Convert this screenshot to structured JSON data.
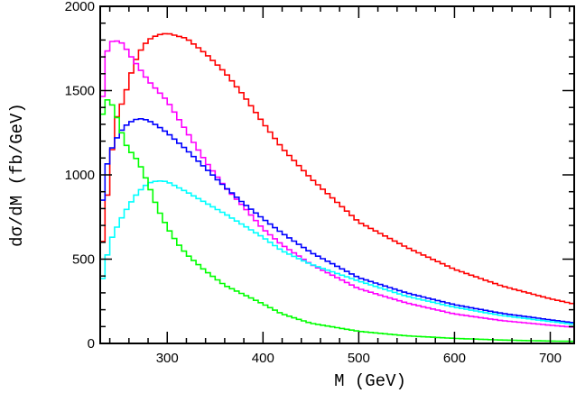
{
  "chart_data": {
    "type": "line",
    "style": "step-histogram",
    "xlabel": "M (GeV)",
    "ylabel": "dσ/dM (fb/GeV)",
    "xlim": [
      230,
      725
    ],
    "ylim": [
      0,
      2000
    ],
    "x_ticks": [
      "300",
      "400",
      "500",
      "600",
      "700"
    ],
    "y_ticks": [
      "0",
      "500",
      "1000",
      "1500",
      "2000"
    ],
    "grid": false,
    "series": [
      {
        "color": "#ff0000",
        "x": [
          230,
          235,
          240,
          245,
          250,
          255,
          260,
          265,
          270,
          280,
          290,
          300,
          320,
          340,
          360,
          380,
          400,
          420,
          450,
          500,
          550,
          600,
          650,
          700,
          725
        ],
        "y": [
          450,
          760,
          1000,
          1300,
          1390,
          1450,
          1560,
          1650,
          1720,
          1800,
          1830,
          1840,
          1810,
          1720,
          1610,
          1470,
          1310,
          1160,
          980,
          720,
          570,
          440,
          340,
          265,
          234
        ]
      },
      {
        "color": "#ff00ff",
        "x": [
          230,
          235,
          240,
          250,
          255,
          260,
          270,
          280,
          290,
          300,
          320,
          340,
          360,
          380,
          400,
          420,
          450,
          500,
          550,
          600,
          650,
          700,
          725
        ],
        "y": [
          1250,
          1680,
          1790,
          1795,
          1770,
          1720,
          1640,
          1560,
          1500,
          1440,
          1260,
          1080,
          930,
          810,
          680,
          585,
          470,
          325,
          240,
          175,
          135,
          108,
          96
        ]
      },
      {
        "color": "#0000ff",
        "x": [
          230,
          235,
          240,
          250,
          260,
          270,
          280,
          290,
          300,
          320,
          340,
          360,
          380,
          400,
          420,
          450,
          500,
          550,
          600,
          650,
          700,
          725
        ],
        "y": [
          700,
          1000,
          1130,
          1250,
          1310,
          1335,
          1325,
          1290,
          1250,
          1150,
          1040,
          930,
          830,
          740,
          655,
          540,
          390,
          300,
          230,
          178,
          140,
          122
        ]
      },
      {
        "color": "#00ffff",
        "x": [
          230,
          235,
          240,
          250,
          260,
          270,
          280,
          290,
          300,
          320,
          340,
          360,
          380,
          400,
          420,
          450,
          500,
          550,
          600,
          650,
          700,
          725
        ],
        "y": [
          320,
          450,
          600,
          720,
          820,
          900,
          950,
          965,
          960,
          900,
          835,
          770,
          700,
          630,
          550,
          470,
          370,
          280,
          215,
          165,
          130,
          113
        ]
      },
      {
        "color": "#00ff00",
        "x": [
          230,
          235,
          240,
          245,
          250,
          255,
          260,
          270,
          280,
          290,
          300,
          310,
          320,
          340,
          360,
          380,
          400,
          420,
          450,
          500,
          550,
          600,
          650,
          700,
          725
        ],
        "y": [
          1280,
          1440,
          1450,
          1380,
          1300,
          1200,
          1150,
          1080,
          950,
          800,
          690,
          600,
          530,
          430,
          345,
          290,
          235,
          175,
          120,
          72,
          45,
          30,
          20,
          14,
          12
        ]
      }
    ]
  }
}
